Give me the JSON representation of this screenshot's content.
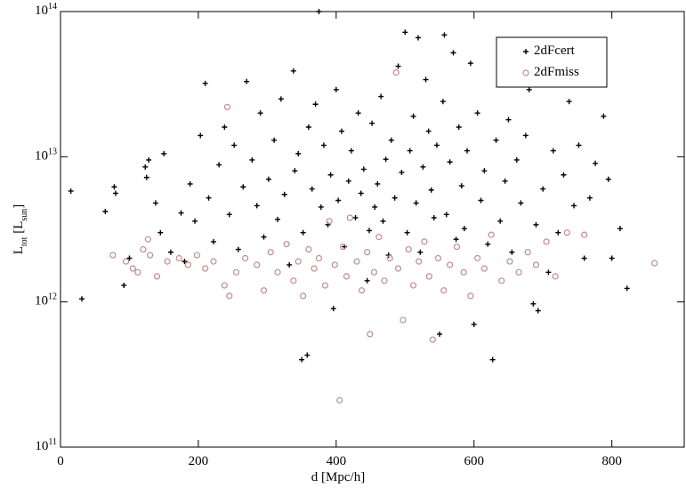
{
  "chart_data": {
    "type": "scatter",
    "x_label": "d [Mpc/h]",
    "y_label": "L_tot [L_sun]",
    "xlim": [
      0,
      905
    ],
    "xticks": [
      0,
      200,
      400,
      600,
      800
    ],
    "ylim": [
      100000000000.0,
      100000000000000.0
    ],
    "log_y": true,
    "yticks": [
      {
        "value": 100000000000.0,
        "label": "10^11"
      },
      {
        "value": 1000000000000.0,
        "label": "10^12"
      },
      {
        "value": 10000000000000.0,
        "label": "10^13"
      },
      {
        "value": 100000000000000.0,
        "label": "10^14"
      }
    ],
    "legend": "top-right",
    "series": [
      {
        "name": "2dFcert",
        "color": "#000000",
        "marker": "plus",
        "x": [
          15,
          31,
          65,
          78,
          80,
          92,
          100,
          123,
          125,
          128,
          138,
          145,
          150,
          160,
          175,
          180,
          188,
          195,
          203,
          210,
          215,
          222,
          230,
          238,
          245,
          252,
          258,
          265,
          270,
          278,
          285,
          290,
          295,
          302,
          310,
          315,
          320,
          325,
          332,
          338,
          340,
          345,
          350,
          352,
          358,
          360,
          365,
          370,
          375,
          378,
          382,
          388,
          392,
          396,
          400,
          403,
          408,
          412,
          418,
          422,
          428,
          432,
          436,
          440,
          445,
          448,
          452,
          456,
          460,
          465,
          468,
          472,
          476,
          480,
          485,
          490,
          495,
          500,
          503,
          507,
          512,
          516,
          519,
          522,
          526,
          530,
          534,
          538,
          542,
          546,
          550,
          555,
          557,
          560,
          565,
          570,
          574,
          578,
          582,
          586,
          590,
          595,
          600,
          605,
          610,
          615,
          620,
          627,
          632,
          638,
          645,
          650,
          655,
          662,
          668,
          675,
          680,
          686,
          690,
          693,
          700,
          708,
          715,
          722,
          730,
          738,
          745,
          752,
          760,
          768,
          776,
          788,
          795,
          800,
          812,
          822
        ],
        "values": [
          5800000000000.0,
          1050000000000.0,
          4200000000000.0,
          6200000000000.0,
          5600000000000.0,
          1300000000000.0,
          2000000000000.0,
          8500000000000.0,
          7200000000000.0,
          9500000000000.0,
          4800000000000.0,
          3000000000000.0,
          10500000000000.0,
          2200000000000.0,
          4100000000000.0,
          1900000000000.0,
          6500000000000.0,
          3600000000000.0,
          14000000000000.0,
          32000000000000.0,
          5200000000000.0,
          2600000000000.0,
          8800000000000.0,
          16000000000000.0,
          4000000000000.0,
          12000000000000.0,
          2300000000000.0,
          6200000000000.0,
          33000000000000.0,
          9500000000000.0,
          4600000000000.0,
          20000000000000.0,
          2800000000000.0,
          7000000000000.0,
          13000000000000.0,
          3700000000000.0,
          25000000000000.0,
          5500000000000.0,
          1800000000000.0,
          39000000000000.0,
          8000000000000.0,
          10500000000000.0,
          400000000000.0,
          3000000000000.0,
          430000000000.0,
          16000000000000.0,
          6000000000000.0,
          23000000000000.0,
          100000000000000.0,
          4500000000000.0,
          12000000000000.0,
          3400000000000.0,
          7500000000000.0,
          900000000000.0,
          29000000000000.0,
          5000000000000.0,
          15000000000000.0,
          2400000000000.0,
          6800000000000.0,
          11000000000000.0,
          3800000000000.0,
          20000000000000.0,
          5600000000000.0,
          8200000000000.0,
          1400000000000.0,
          3100000000000.0,
          17000000000000.0,
          4500000000000.0,
          6500000000000.0,
          26000000000000.0,
          3600000000000.0,
          9600000000000.0,
          2100000000000.0,
          13000000000000.0,
          5200000000000.0,
          42000000000000.0,
          7800000000000.0,
          72000000000000.0,
          3000000000000.0,
          11000000000000.0,
          19000000000000.0,
          4800000000000.0,
          66000000000000.0,
          2200000000000.0,
          8500000000000.0,
          34000000000000.0,
          15000000000000.0,
          5900000000000.0,
          3800000000000.0,
          12000000000000.0,
          600000000000.0,
          24000000000000.0,
          69000000000000.0,
          4000000000000.0,
          9200000000000.0,
          52000000000000.0,
          2700000000000.0,
          16000000000000.0,
          6300000000000.0,
          3200000000000.0,
          11000000000000.0,
          44000000000000.0,
          700000000000.0,
          20000000000000.0,
          5000000000000.0,
          8000000000000.0,
          2500000000000.0,
          400000000000.0,
          13000000000000.0,
          3600000000000.0,
          6800000000000.0,
          18000000000000.0,
          2200000000000.0,
          9500000000000.0,
          4800000000000.0,
          14000000000000.0,
          29000000000000.0,
          970000000000.0,
          3400000000000.0,
          870000000000.0,
          6000000000000.0,
          1600000000000.0,
          11000000000000.0,
          3000000000000.0,
          7500000000000.0,
          24000000000000.0,
          4600000000000.0,
          12000000000000.0,
          2000000000000.0,
          5200000000000.0,
          9000000000000.0,
          19000000000000.0,
          7000000000000.0,
          2000000000000.0,
          3200000000000.0,
          1240000000000.0
        ]
      },
      {
        "name": "2dFmiss",
        "color": "#c08c8c",
        "marker": "circle",
        "x": [
          76,
          95,
          105,
          112,
          120,
          127,
          130,
          140,
          155,
          172,
          185,
          198,
          210,
          222,
          238,
          242,
          245,
          255,
          268,
          285,
          295,
          305,
          315,
          328,
          338,
          345,
          352,
          360,
          368,
          375,
          384,
          390,
          398,
          405,
          410,
          415,
          420,
          430,
          437,
          445,
          449,
          455,
          462,
          470,
          478,
          487,
          490,
          497,
          505,
          512,
          520,
          528,
          535,
          540,
          548,
          556,
          565,
          575,
          585,
          595,
          605,
          615,
          625,
          640,
          652,
          665,
          678,
          690,
          705,
          718,
          735,
          760,
          862
        ],
        "values": [
          2100000000000.0,
          1900000000000.0,
          1700000000000.0,
          1600000000000.0,
          2300000000000.0,
          2700000000000.0,
          2100000000000.0,
          1500000000000.0,
          1900000000000.0,
          2000000000000.0,
          1800000000000.0,
          2100000000000.0,
          1700000000000.0,
          1900000000000.0,
          1300000000000.0,
          22000000000000.0,
          1100000000000.0,
          1600000000000.0,
          2000000000000.0,
          1800000000000.0,
          1200000000000.0,
          2200000000000.0,
          1600000000000.0,
          2500000000000.0,
          1400000000000.0,
          1900000000000.0,
          1100000000000.0,
          2300000000000.0,
          1700000000000.0,
          2000000000000.0,
          1300000000000.0,
          3600000000000.0,
          1800000000000.0,
          210000000000.0,
          2400000000000.0,
          1500000000000.0,
          3800000000000.0,
          1900000000000.0,
          1200000000000.0,
          2200000000000.0,
          600000000000.0,
          1600000000000.0,
          2800000000000.0,
          1400000000000.0,
          2000000000000.0,
          38000000000000.0,
          1700000000000.0,
          750000000000.0,
          2300000000000.0,
          1300000000000.0,
          1900000000000.0,
          2600000000000.0,
          1500000000000.0,
          550000000000.0,
          2000000000000.0,
          1200000000000.0,
          1800000000000.0,
          2400000000000.0,
          1600000000000.0,
          1100000000000.0,
          2000000000000.0,
          1700000000000.0,
          2900000000000.0,
          1400000000000.0,
          1900000000000.0,
          1600000000000.0,
          2200000000000.0,
          1800000000000.0,
          2600000000000.0,
          1500000000000.0,
          3000000000000.0,
          2900000000000.0,
          1850000000000.0
        ]
      }
    ]
  }
}
